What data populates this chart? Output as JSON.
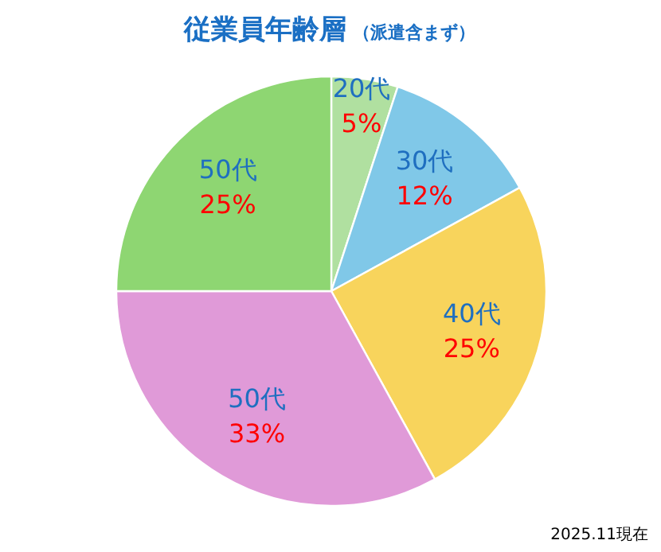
{
  "chart_data": {
    "type": "pie",
    "title": "従業員年齢層",
    "subtitle": "（派遣含まず）",
    "annotations": [
      "2025.11現在"
    ],
    "categories": [
      "20代",
      "30代",
      "40代",
      "50代",
      "50代"
    ],
    "values": [
      5,
      12,
      25,
      33,
      25
    ],
    "value_labels": [
      "5%",
      "12%",
      "25%",
      "33%",
      "25%"
    ],
    "colors": [
      "#b0e0a0",
      "#80c8e8",
      "#f8d45c",
      "#e09ad8",
      "#8ed672"
    ]
  }
}
